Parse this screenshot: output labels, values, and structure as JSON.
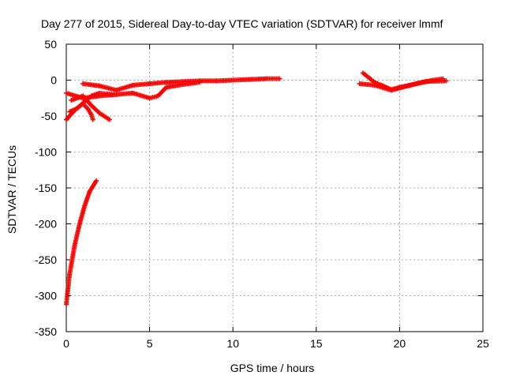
{
  "chart_data": {
    "type": "scatter",
    "title": "Day 277 of 2015, Sidereal Day-to-day VTEC variation (SDTVAR) for receiver lmmf",
    "xlabel": "GPS time / hours",
    "ylabel": "SDTVAR / TECUs",
    "xlim": [
      0,
      25
    ],
    "ylim": [
      -350,
      50
    ],
    "xticks": [
      0,
      5,
      10,
      15,
      20,
      25
    ],
    "yticks": [
      50,
      0,
      -50,
      -100,
      -150,
      -200,
      -250,
      -300,
      -350
    ],
    "grid": true,
    "marker": "plus",
    "color": "#ff0000",
    "series": [
      {
        "segments": [
          [
            [
              1.0,
              -5
            ],
            [
              2.0,
              -8
            ],
            [
              3.0,
              -14
            ],
            [
              4.0,
              -7
            ],
            [
              5.0,
              -5
            ],
            [
              6.0,
              -3
            ],
            [
              7.0,
              -2
            ],
            [
              8.0,
              -1
            ],
            [
              9.0,
              -1
            ],
            [
              10.0,
              0
            ],
            [
              11.0,
              1
            ],
            [
              12.0,
              2
            ],
            [
              12.8,
              2
            ]
          ],
          [
            [
              0.0,
              -18
            ],
            [
              1.0,
              -25
            ],
            [
              2.0,
              -22
            ],
            [
              3.0,
              -20
            ],
            [
              4.0,
              -18
            ],
            [
              5.0,
              -25
            ],
            [
              5.5,
              -22
            ],
            [
              6.0,
              -10
            ],
            [
              7.0,
              -6
            ],
            [
              8.0,
              -3
            ]
          ],
          [
            [
              0.0,
              -55
            ],
            [
              0.5,
              -42
            ],
            [
              1.0,
              -32
            ],
            [
              1.5,
              -22
            ],
            [
              2.0,
              -18
            ],
            [
              2.8,
              -20
            ]
          ],
          [
            [
              0.3,
              -28
            ],
            [
              1.0,
              -22
            ],
            [
              1.5,
              -35
            ],
            [
              2.0,
              -46
            ],
            [
              2.6,
              -55
            ]
          ],
          [
            [
              0.2,
              -44
            ],
            [
              0.6,
              -40
            ],
            [
              1.0,
              -33
            ],
            [
              1.3,
              -40
            ],
            [
              1.5,
              -48
            ],
            [
              1.6,
              -55
            ]
          ],
          [
            [
              0.0,
              -312
            ],
            [
              0.2,
              -270
            ],
            [
              0.5,
              -230
            ],
            [
              0.8,
              -200
            ],
            [
              1.1,
              -175
            ],
            [
              1.4,
              -155
            ],
            [
              1.8,
              -140
            ]
          ],
          [
            [
              17.8,
              10
            ],
            [
              18.5,
              -3
            ],
            [
              19.0,
              -8
            ],
            [
              19.5,
              -13
            ],
            [
              20.0,
              -10
            ],
            [
              21.0,
              -5
            ],
            [
              22.0,
              0
            ],
            [
              22.6,
              2
            ]
          ],
          [
            [
              17.6,
              -5
            ],
            [
              18.5,
              -7
            ],
            [
              19.5,
              -14
            ],
            [
              20.5,
              -8
            ],
            [
              21.5,
              -2
            ],
            [
              22.8,
              -1
            ]
          ]
        ]
      }
    ]
  }
}
